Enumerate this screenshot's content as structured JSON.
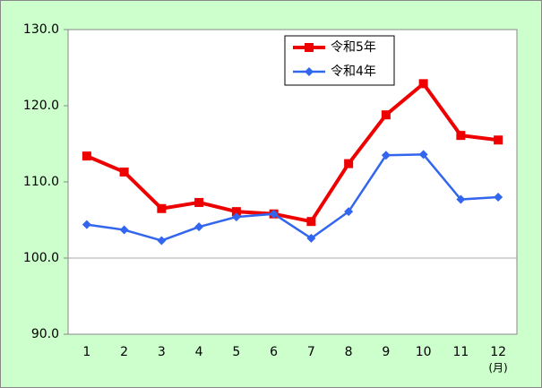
{
  "chart_data": {
    "type": "line",
    "categories": [
      "1",
      "2",
      "3",
      "4",
      "5",
      "6",
      "7",
      "8",
      "9",
      "10",
      "11",
      "12"
    ],
    "x_unit": "(月)",
    "series": [
      {
        "name": "令和5年",
        "color": "#ee0000",
        "marker": "square",
        "values": [
          113.4,
          111.3,
          106.5,
          107.3,
          106.1,
          105.8,
          104.8,
          112.4,
          118.8,
          122.9,
          116.1,
          115.5
        ]
      },
      {
        "name": "令和4年",
        "color": "#3366ee",
        "marker": "diamond",
        "values": [
          104.4,
          103.7,
          102.3,
          104.1,
          105.4,
          105.8,
          102.6,
          106.1,
          113.5,
          113.6,
          107.7,
          108.0
        ]
      }
    ],
    "ylim": [
      90,
      130
    ],
    "yticks": [
      {
        "value": 90,
        "label": "90.0"
      },
      {
        "value": 100,
        "label": "100.0"
      },
      {
        "value": 110,
        "label": "110.0"
      },
      {
        "value": 120,
        "label": "120.0"
      },
      {
        "value": 130,
        "label": "130.0"
      }
    ],
    "reference_line": 100,
    "background": "#ccffcc"
  }
}
